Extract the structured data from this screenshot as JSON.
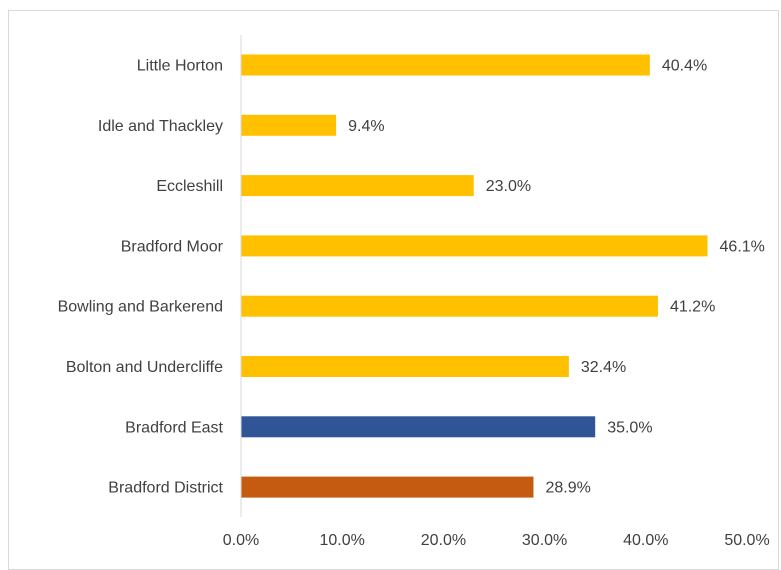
{
  "chart_data": {
    "type": "bar",
    "orientation": "horizontal",
    "categories": [
      "Little Horton",
      "Idle and Thackley",
      "Eccleshill",
      "Bradford Moor",
      "Bowling and Barkerend",
      "Bolton and Undercliffe",
      "Bradford East",
      "Bradford District"
    ],
    "values": [
      40.4,
      9.4,
      23.0,
      46.1,
      41.2,
      32.4,
      35.0,
      28.9
    ],
    "data_labels": [
      "40.4%",
      "9.4%",
      "23.0%",
      "46.1%",
      "41.2%",
      "32.4%",
      "35.0%",
      "28.9%"
    ],
    "bar_colors": [
      "#FFC000",
      "#FFC000",
      "#FFC000",
      "#FFC000",
      "#FFC000",
      "#FFC000",
      "#2F5597",
      "#C55A11"
    ],
    "xlim": [
      0,
      50
    ],
    "x_ticks": [
      0,
      10,
      20,
      30,
      40,
      50
    ],
    "x_tick_labels": [
      "0.0%",
      "10.0%",
      "20.0%",
      "30.0%",
      "40.0%",
      "50.0%"
    ],
    "title": "",
    "xlabel": "",
    "ylabel": "",
    "grid": false,
    "legend": "none"
  }
}
